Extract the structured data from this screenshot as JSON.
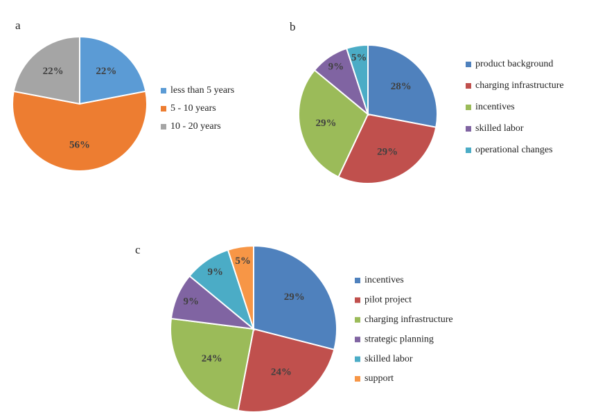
{
  "chart_data": [
    {
      "type": "pie",
      "title": "a",
      "categories": [
        "less than 5 years",
        "5 - 10 years",
        "10 - 20 years"
      ],
      "values": [
        22,
        56,
        22
      ],
      "value_labels": [
        "22%",
        "56%",
        "22%"
      ],
      "colors": [
        "#5b9bd5",
        "#ed7d31",
        "#a5a5a5"
      ]
    },
    {
      "type": "pie",
      "title": "b",
      "categories": [
        "product background",
        "charging infrastructure",
        "incentives",
        "skilled labor",
        "operational changes"
      ],
      "values": [
        28,
        29,
        29,
        9,
        5
      ],
      "value_labels": [
        "28%",
        "29%",
        "29%",
        "9%",
        "5%"
      ],
      "colors": [
        "#4f81bd",
        "#c0504d",
        "#9bbb59",
        "#8064a2",
        "#4bacc6"
      ]
    },
    {
      "type": "pie",
      "title": "c",
      "categories": [
        "incentives",
        "pilot project",
        "charging infrastructure",
        "strategic planning",
        "skilled labor",
        "support"
      ],
      "values": [
        29,
        24,
        24,
        9,
        9,
        5
      ],
      "value_labels": [
        "29%",
        "24%",
        "24%",
        "9%",
        "9%",
        "5%"
      ],
      "colors": [
        "#4f81bd",
        "#c0504d",
        "#9bbb59",
        "#8064a2",
        "#4bacc6",
        "#f79646"
      ]
    }
  ]
}
